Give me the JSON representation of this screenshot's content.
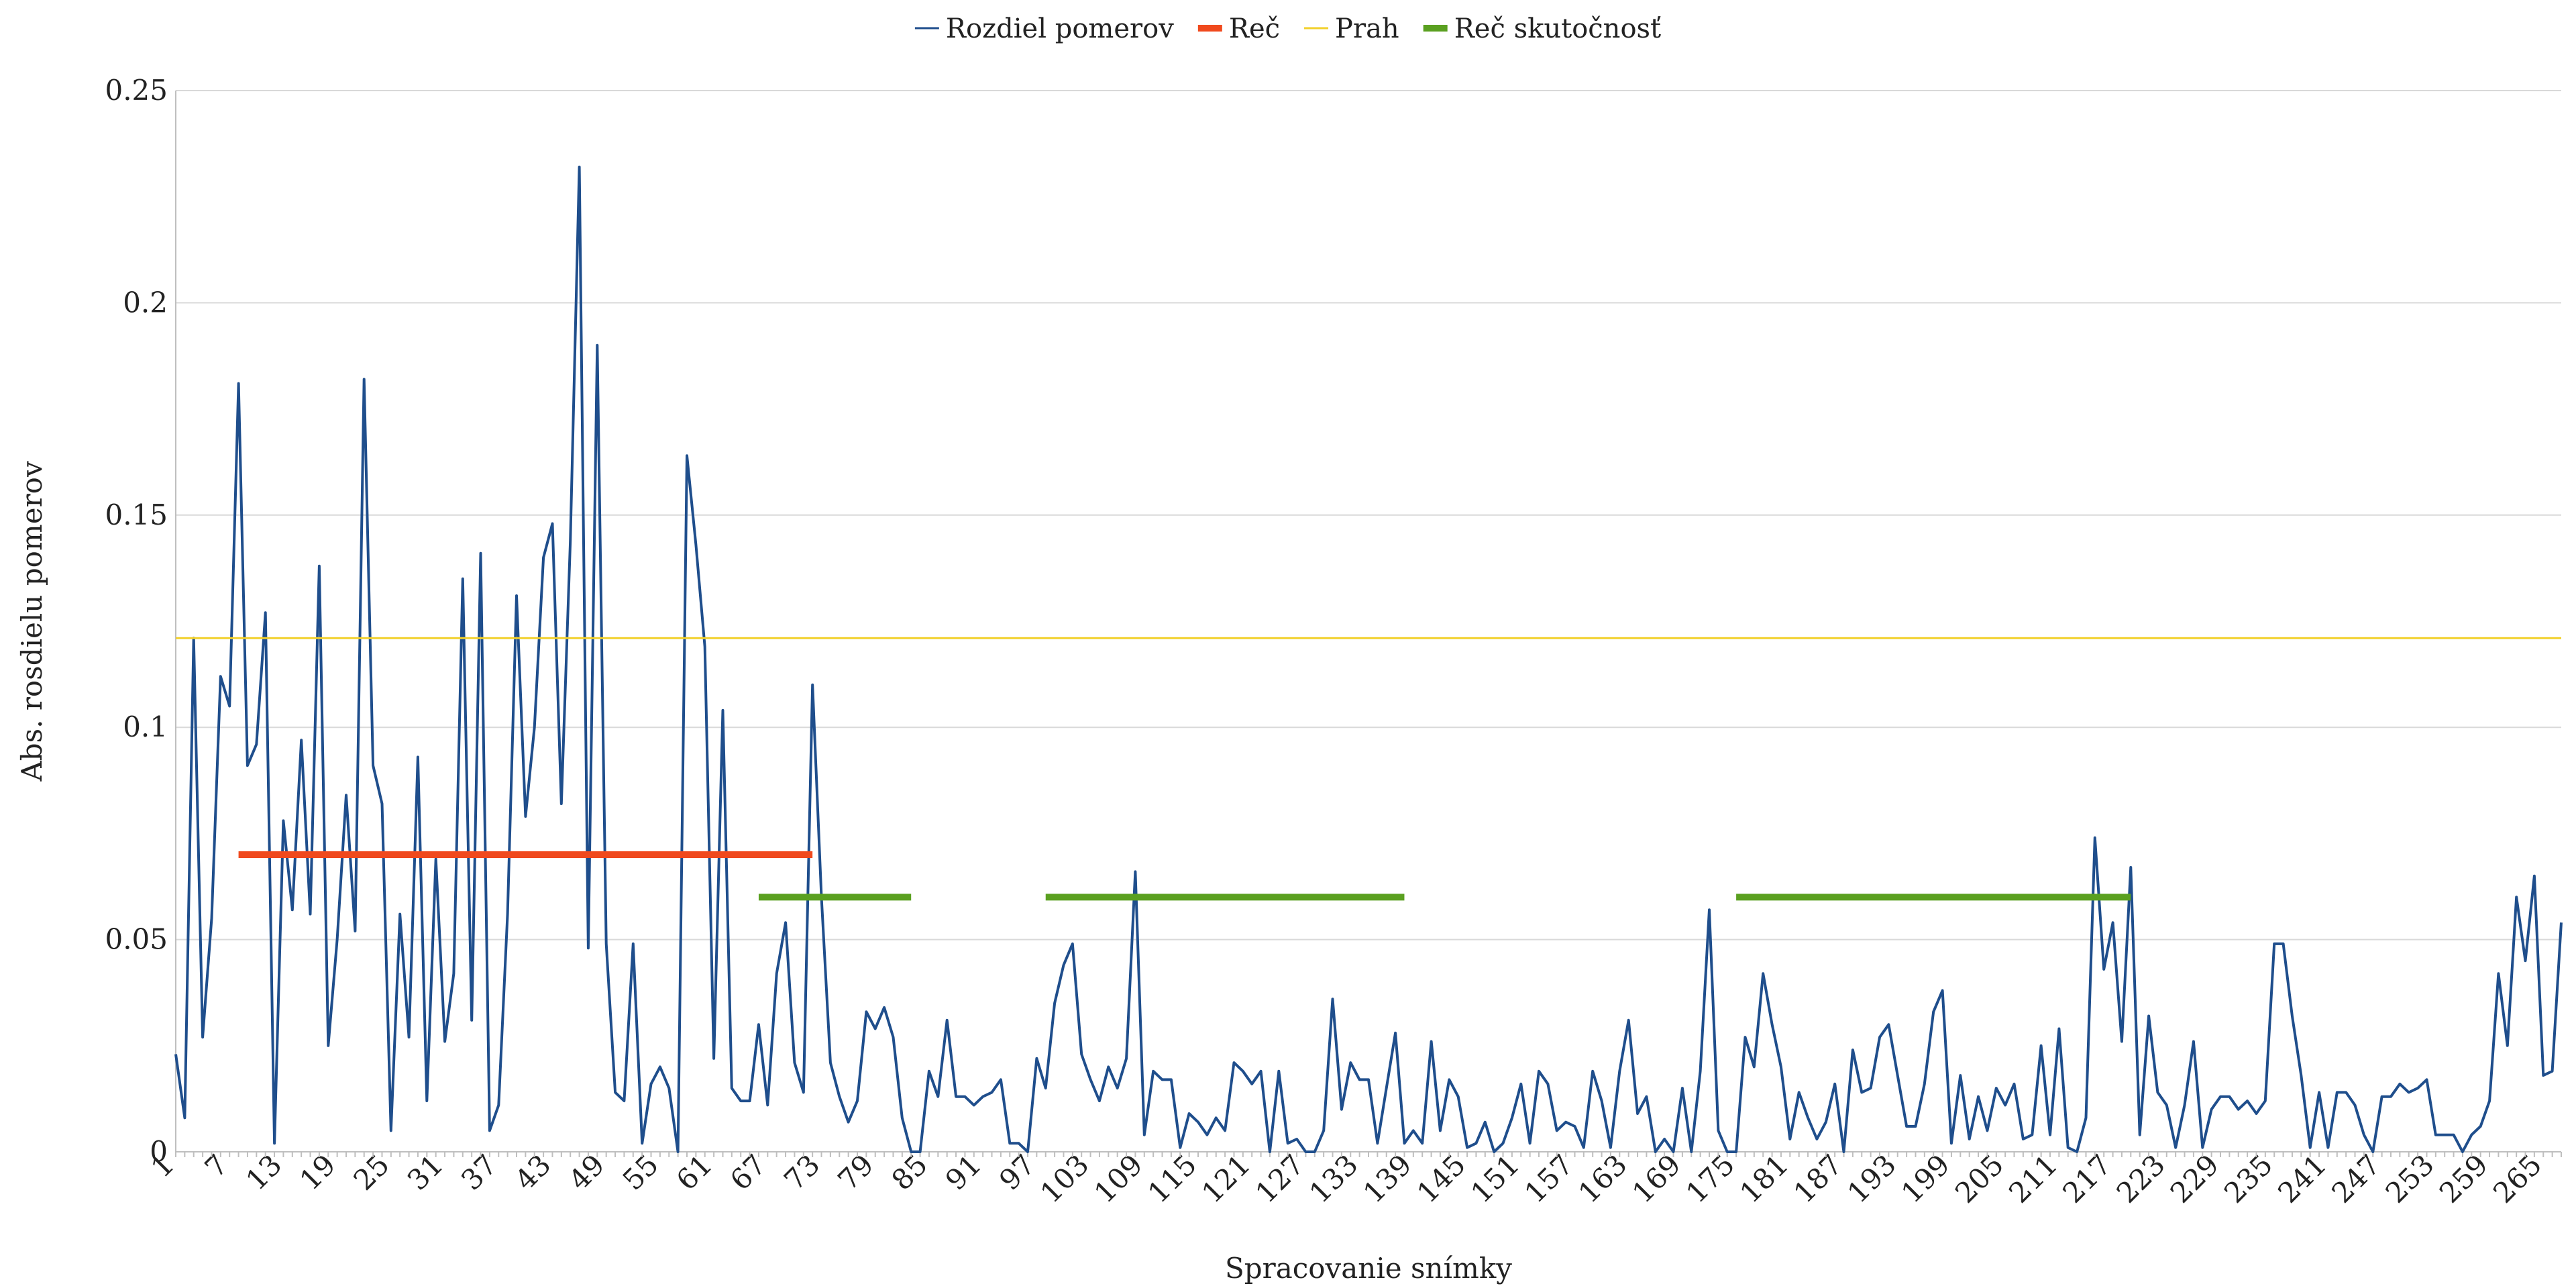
{
  "chart_data": {
    "type": "line",
    "xlabel": "Spracovanie snímky",
    "ylabel": "Abs. rosdielu pomerov",
    "xlim": [
      1,
      267
    ],
    "ylim": [
      0,
      0.25
    ],
    "y_ticks": [
      "0",
      "0.05",
      "0.1",
      "0.15",
      "0.2",
      "0.25"
    ],
    "x_tick_step": 6,
    "grid": true,
    "legend_position": "top",
    "legend": [
      {
        "name": "Rozdiel pomerov",
        "color": "#1f4e8c"
      },
      {
        "name": "Reč",
        "color": "#f0491d"
      },
      {
        "name": "Prah",
        "color": "#f2d02b"
      },
      {
        "name": "Reč skutočnosť",
        "color": "#5aa020"
      }
    ],
    "series": [
      {
        "name": "Rozdiel pomerov",
        "color": "#1f4e8c",
        "values": [
          0.023,
          0.008,
          0.121,
          0.027,
          0.055,
          0.112,
          0.105,
          0.181,
          0.091,
          0.096,
          0.127,
          0.002,
          0.078,
          0.057,
          0.097,
          0.056,
          0.138,
          0.025,
          0.05,
          0.084,
          0.052,
          0.182,
          0.091,
          0.082,
          0.005,
          0.056,
          0.027,
          0.093,
          0.012,
          0.069,
          0.026,
          0.042,
          0.135,
          0.031,
          0.141,
          0.005,
          0.011,
          0.056,
          0.131,
          0.079,
          0.1,
          0.14,
          0.148,
          0.082,
          0.144,
          0.232,
          0.048,
          0.19,
          0.049,
          0.014,
          0.012,
          0.049,
          0.002,
          0.016,
          0.02,
          0.015,
          0.0,
          0.164,
          0.143,
          0.119,
          0.022,
          0.104,
          0.015,
          0.012,
          0.012,
          0.03,
          0.011,
          0.042,
          0.054,
          0.021,
          0.014,
          0.11,
          0.06,
          0.021,
          0.013,
          0.007,
          0.012,
          0.033,
          0.029,
          0.034,
          0.027,
          0.008,
          0.0,
          0.0,
          0.019,
          0.013,
          0.031,
          0.013,
          0.013,
          0.011,
          0.013,
          0.014,
          0.017,
          0.002,
          0.002,
          0.0,
          0.022,
          0.015,
          0.035,
          0.044,
          0.049,
          0.023,
          0.017,
          0.012,
          0.02,
          0.015,
          0.022,
          0.066,
          0.004,
          0.019,
          0.017,
          0.017,
          0.001,
          0.009,
          0.007,
          0.004,
          0.008,
          0.005,
          0.021,
          0.019,
          0.016,
          0.019,
          0.0,
          0.019,
          0.002,
          0.003,
          0.0,
          0.0,
          0.005,
          0.036,
          0.01,
          0.021,
          0.017,
          0.017,
          0.002,
          0.015,
          0.028,
          0.002,
          0.005,
          0.002,
          0.026,
          0.005,
          0.017,
          0.013,
          0.001,
          0.002,
          0.007,
          0.0,
          0.002,
          0.008,
          0.016,
          0.002,
          0.019,
          0.016,
          0.005,
          0.007,
          0.006,
          0.001,
          0.019,
          0.012,
          0.001,
          0.019,
          0.031,
          0.009,
          0.013,
          0.0,
          0.003,
          0.0,
          0.015,
          0.0,
          0.019,
          0.057,
          0.005,
          0.0,
          0.0,
          0.027,
          0.02,
          0.042,
          0.03,
          0.02,
          0.003,
          0.014,
          0.008,
          0.003,
          0.007,
          0.016,
          0.0,
          0.024,
          0.014,
          0.015,
          0.027,
          0.03,
          0.018,
          0.006,
          0.006,
          0.016,
          0.033,
          0.038,
          0.002,
          0.018,
          0.003,
          0.013,
          0.005,
          0.015,
          0.011,
          0.016,
          0.003,
          0.004,
          0.025,
          0.004,
          0.029,
          0.001,
          0.0,
          0.008,
          0.074,
          0.043,
          0.054,
          0.026,
          0.067,
          0.004,
          0.032,
          0.014,
          0.011,
          0.001,
          0.011,
          0.026,
          0.001,
          0.01,
          0.013,
          0.013,
          0.01,
          0.012,
          0.009,
          0.012,
          0.049,
          0.049,
          0.032,
          0.018,
          0.001,
          0.014,
          0.001,
          0.014,
          0.014,
          0.011,
          0.004,
          0.0,
          0.013,
          0.013,
          0.016,
          0.014,
          0.015,
          0.017,
          0.004,
          0.004,
          0.004,
          0.0,
          0.004,
          0.006,
          0.012,
          0.042,
          0.025,
          0.06,
          0.045,
          0.065,
          0.018,
          0.019,
          0.054
        ]
      },
      {
        "name": "Reč",
        "color": "#f0491d",
        "segments": [
          {
            "x": [
              8,
              72
            ],
            "y": 0.07
          }
        ]
      },
      {
        "name": "Prah",
        "color": "#f2d02b",
        "segments": [
          {
            "x": [
              1,
              267
            ],
            "y": 0.121
          }
        ]
      },
      {
        "name": "Reč skutočnosť",
        "color": "#5aa020",
        "segments": [
          {
            "x": [
              66,
              83
            ],
            "y": 0.06
          },
          {
            "x": [
              98,
              138
            ],
            "y": 0.06
          },
          {
            "x": [
              175,
              219
            ],
            "y": 0.06
          }
        ]
      }
    ]
  }
}
